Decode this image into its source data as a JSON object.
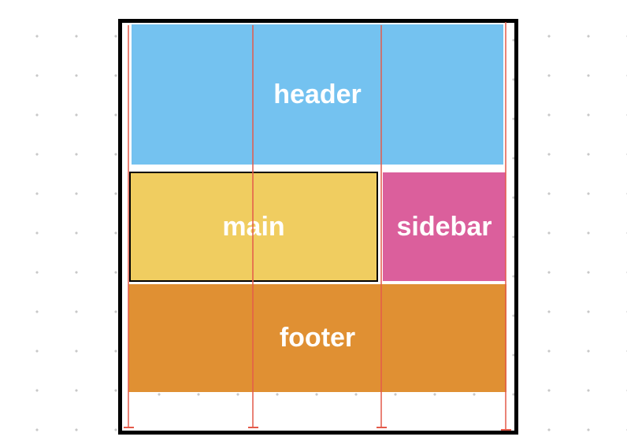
{
  "colors": {
    "frame": "#000000",
    "guide": "#e45a4a",
    "label": "#ffffff"
  },
  "areas": [
    {
      "id": "header",
      "label": "header",
      "color": "#74c2f0"
    },
    {
      "id": "main",
      "label": "main",
      "color": "#f0cd60"
    },
    {
      "id": "sidebar",
      "label": "sidebar",
      "color": "#db5f9c"
    },
    {
      "id": "footer",
      "label": "footer",
      "color": "#e09033"
    }
  ]
}
